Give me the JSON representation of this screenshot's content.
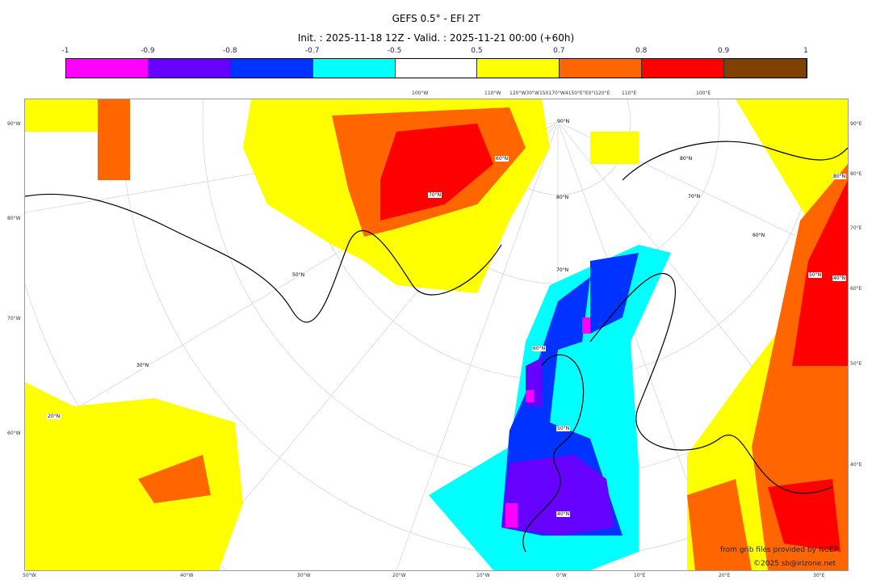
{
  "title": "GEFS 0.5° - EFI 2T",
  "subtitle": "Init. : 2025-11-18 12Z - Valid. : 2025-11-21 00:00 (+60h)",
  "colorbar": {
    "ticks": [
      "-1",
      "-0.9",
      "-0.8",
      "-0.7",
      "-0.5",
      "0.5",
      "0.7",
      "0.8",
      "0.9",
      "1"
    ],
    "colors": [
      "#ff00ff",
      "#6600ff",
      "#0033ff",
      "#00ffff",
      "#ffffff",
      "#ffff00",
      "#ff6600",
      "#ff0000",
      "#804000"
    ]
  },
  "axes": {
    "top": [
      "100°W",
      "110°W",
      "120°W30°W150170°W4150°E°E0°I120°E",
      "110°E",
      "100°E"
    ],
    "left": [
      "90°W",
      "80°W",
      "70°W",
      "60°W"
    ],
    "right": [
      "90°E",
      "80°E",
      "70°E",
      "60°E",
      "50°E",
      "40°E"
    ],
    "bottom": [
      "50°W",
      "40°W",
      "30°W",
      "20°W",
      "10°W",
      "0°W",
      "10°E",
      "20°E",
      "30°E"
    ]
  },
  "lat_labels": [
    "90°N",
    "80°N",
    "80°N",
    "80°N",
    "70°N",
    "70°N",
    "70°N",
    "60°N",
    "60°N",
    "60°N",
    "50°N",
    "50°N",
    "50°N",
    "40°N",
    "40°N",
    "30°N",
    "20°N"
  ],
  "credits": {
    "source": "from grib files provided by NCEP",
    "copyright": "©2025 sb@irizone.net"
  }
}
